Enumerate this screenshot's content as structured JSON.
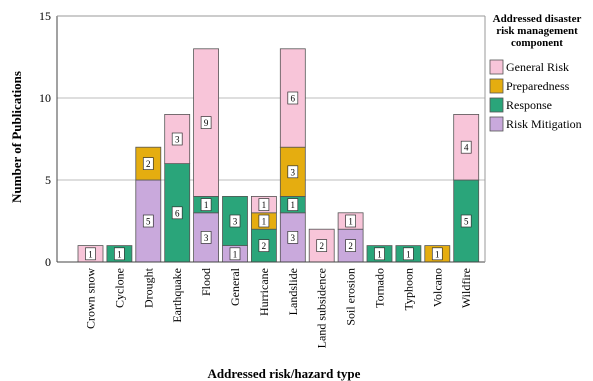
{
  "chart_data": {
    "type": "bar",
    "stacked": true,
    "xlabel": "Addressed risk/hazard type",
    "ylabel": "Number of Publications",
    "ylim": [
      0,
      15
    ],
    "yticks": [
      0,
      5,
      10,
      15
    ],
    "grid": "horizontal",
    "legend_title": "Addressed disaster risk management component",
    "legend_placement": "right",
    "categories": [
      "Crown snow",
      "Cyclone",
      "Drought",
      "Earthquake",
      "Flood",
      "General",
      "Hurricane",
      "Landslide",
      "Land subsidence",
      "Soil erosion",
      "Tornado",
      "Typhoon",
      "Volcano",
      "Wildfire"
    ],
    "series": [
      {
        "name": "Risk Mitigation",
        "color": "#c9a9dc",
        "values": [
          0,
          0,
          5,
          0,
          3,
          1,
          0,
          3,
          0,
          2,
          0,
          0,
          0,
          0
        ]
      },
      {
        "name": "Response",
        "color": "#2aa57a",
        "values": [
          0,
          1,
          0,
          6,
          1,
          3,
          2,
          1,
          0,
          0,
          1,
          1,
          0,
          5
        ]
      },
      {
        "name": "Preparedness",
        "color": "#e5ad10",
        "values": [
          0,
          0,
          2,
          0,
          0,
          0,
          1,
          3,
          0,
          0,
          0,
          0,
          1,
          0
        ]
      },
      {
        "name": "General Risk",
        "color": "#f8c5d9",
        "values": [
          1,
          0,
          0,
          3,
          9,
          0,
          1,
          6,
          2,
          1,
          0,
          0,
          0,
          4
        ]
      }
    ],
    "legend_order": [
      "General Risk",
      "Preparedness",
      "Response",
      "Risk Mitigation"
    ]
  }
}
